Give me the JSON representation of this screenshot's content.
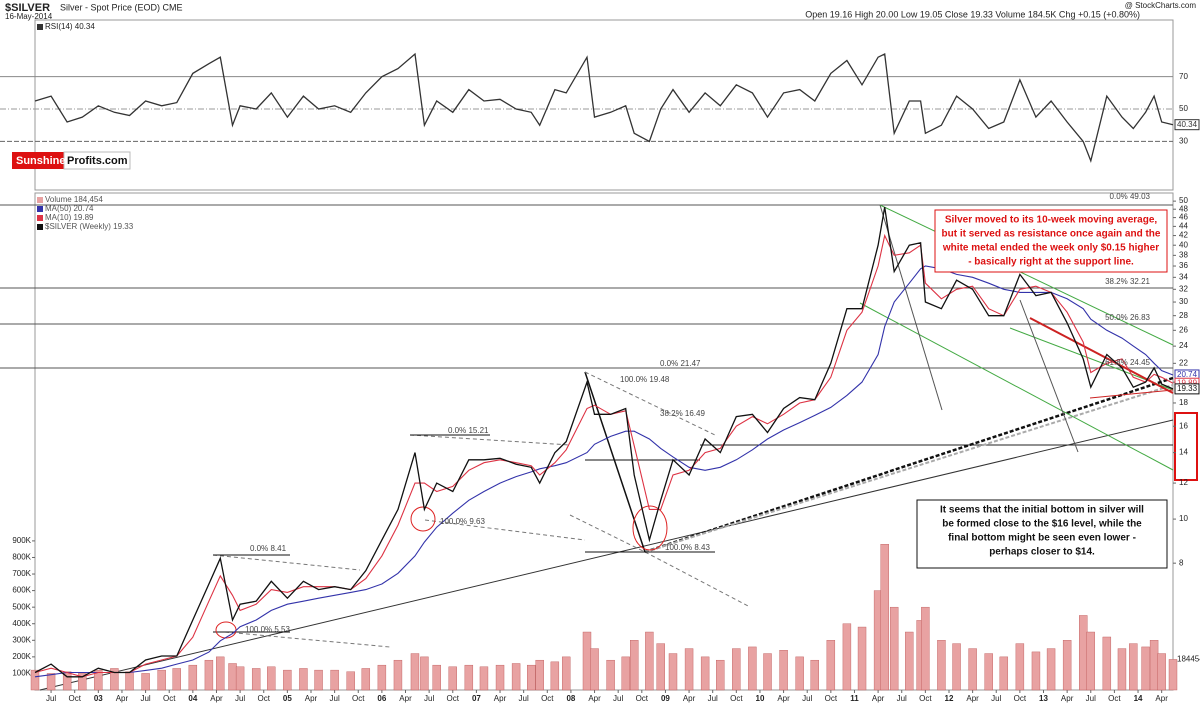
{
  "logo": {
    "part1": "Sunshine",
    "part2": "Profits.com"
  },
  "chart_data": [
    {
      "type": "line",
      "xlim": [
        2002.33,
        2014.37
      ],
      "x": [
        2002.33,
        2002.5,
        2002.67,
        2002.83,
        2003.0,
        2003.17,
        2003.33,
        2003.5,
        2003.67,
        2003.83,
        2004.0,
        2004.17,
        2004.29,
        2004.42,
        2004.5,
        2004.67,
        2004.83,
        2005.0,
        2005.17,
        2005.33,
        2005.5,
        2005.67,
        2005.83,
        2006.0,
        2006.17,
        2006.35,
        2006.45,
        2006.58,
        2006.75,
        2006.92,
        2007.08,
        2007.25,
        2007.42,
        2007.58,
        2007.67,
        2007.83,
        2007.95,
        2008.17,
        2008.25,
        2008.42,
        2008.58,
        2008.67,
        2008.83,
        2008.95,
        2009.08,
        2009.25,
        2009.42,
        2009.58,
        2009.75,
        2009.92,
        2010.08,
        2010.25,
        2010.42,
        2010.58,
        2010.75,
        2010.92,
        2011.08,
        2011.25,
        2011.32,
        2011.42,
        2011.58,
        2011.7,
        2011.75,
        2011.92,
        2012.08,
        2012.25,
        2012.42,
        2012.58,
        2012.75,
        2012.92,
        2013.08,
        2013.25,
        2013.42,
        2013.5,
        2013.67,
        2013.83,
        2013.95,
        2014.08,
        2014.17,
        2014.25,
        2014.37
      ],
      "ylim": [
        0,
        105
      ],
      "yticks": [
        30,
        50,
        70
      ],
      "series": [
        {
          "name": "RSI(14) 40.34",
          "color": "#333333",
          "values": [
            55,
            58,
            42,
            45,
            52,
            48,
            46,
            55,
            52,
            54,
            72,
            78,
            82,
            40,
            52,
            50,
            60,
            45,
            58,
            50,
            52,
            48,
            60,
            70,
            75,
            84,
            40,
            55,
            48,
            62,
            55,
            56,
            50,
            48,
            40,
            62,
            60,
            82,
            45,
            48,
            52,
            35,
            30,
            50,
            62,
            48,
            60,
            52,
            65,
            60,
            45,
            60,
            62,
            55,
            72,
            80,
            65,
            82,
            84,
            35,
            55,
            55,
            35,
            40,
            58,
            50,
            38,
            42,
            68,
            45,
            55,
            42,
            30,
            18,
            58,
            45,
            38,
            48,
            58,
            42,
            40.34
          ]
        }
      ]
    },
    {
      "type": "line",
      "title": "$SILVER",
      "subtitle": "Silver - Spot Price (EOD) CME",
      "date": "16-May-2014",
      "quote": "Open 19.16 High 20.00 Low 19.05 Close 19.33 Volume 184.5K Chg +0.15 (+0.80%)",
      "source": "@ StockCharts.com",
      "log_scale": true,
      "xlim": [
        2002.33,
        2014.37
      ],
      "xticks": [
        {
          "value": 2002.5,
          "label": "Jul"
        },
        {
          "value": 2002.75,
          "label": "Oct"
        },
        {
          "value": 2003,
          "label": "03"
        },
        {
          "value": 2003.25,
          "label": "Apr"
        },
        {
          "value": 2003.5,
          "label": "Jul"
        },
        {
          "value": 2003.75,
          "label": "Oct"
        },
        {
          "value": 2004,
          "label": "04"
        },
        {
          "value": 2004.25,
          "label": "Apr"
        },
        {
          "value": 2004.5,
          "label": "Jul"
        },
        {
          "value": 2004.75,
          "label": "Oct"
        },
        {
          "value": 2005,
          "label": "05"
        },
        {
          "value": 2005.25,
          "label": "Apr"
        },
        {
          "value": 2005.5,
          "label": "Jul"
        },
        {
          "value": 2005.75,
          "label": "Oct"
        },
        {
          "value": 2006,
          "label": "06"
        },
        {
          "value": 2006.25,
          "label": "Apr"
        },
        {
          "value": 2006.5,
          "label": "Jul"
        },
        {
          "value": 2006.75,
          "label": "Oct"
        },
        {
          "value": 2007,
          "label": "07"
        },
        {
          "value": 2007.25,
          "label": "Apr"
        },
        {
          "value": 2007.5,
          "label": "Jul"
        },
        {
          "value": 2007.75,
          "label": "Oct"
        },
        {
          "value": 2008,
          "label": "08"
        },
        {
          "value": 2008.25,
          "label": "Apr"
        },
        {
          "value": 2008.5,
          "label": "Jul"
        },
        {
          "value": 2008.75,
          "label": "Oct"
        },
        {
          "value": 2009,
          "label": "09"
        },
        {
          "value": 2009.25,
          "label": "Apr"
        },
        {
          "value": 2009.5,
          "label": "Jul"
        },
        {
          "value": 2009.75,
          "label": "Oct"
        },
        {
          "value": 2010,
          "label": "10"
        },
        {
          "value": 2010.25,
          "label": "Apr"
        },
        {
          "value": 2010.5,
          "label": "Jul"
        },
        {
          "value": 2010.75,
          "label": "Oct"
        },
        {
          "value": 2011,
          "label": "11"
        },
        {
          "value": 2011.25,
          "label": "Apr"
        },
        {
          "value": 2011.5,
          "label": "Jul"
        },
        {
          "value": 2011.75,
          "label": "Oct"
        },
        {
          "value": 2012,
          "label": "12"
        },
        {
          "value": 2012.25,
          "label": "Apr"
        },
        {
          "value": 2012.5,
          "label": "Jul"
        },
        {
          "value": 2012.75,
          "label": "Oct"
        },
        {
          "value": 2013,
          "label": "13"
        },
        {
          "value": 2013.25,
          "label": "Apr"
        },
        {
          "value": 2013.5,
          "label": "Jul"
        },
        {
          "value": 2013.75,
          "label": "Oct"
        },
        {
          "value": 2014,
          "label": "14"
        },
        {
          "value": 2014.25,
          "label": "Apr"
        }
      ],
      "ylim": [
        4.21,
        52.1
      ],
      "yticks": [
        8,
        10,
        12,
        14,
        16,
        18,
        20,
        22,
        24,
        26,
        28,
        30,
        32,
        34,
        36,
        38,
        40,
        42,
        44,
        46,
        48,
        50
      ],
      "y2lim": [
        0,
        3000000
      ],
      "y2ticks": [
        {
          "value": 100000,
          "label": "100K"
        },
        {
          "value": 200000,
          "label": "200K"
        },
        {
          "value": 300000,
          "label": "300K"
        },
        {
          "value": 400000,
          "label": "400K"
        },
        {
          "value": 500000,
          "label": "500K"
        },
        {
          "value": 600000,
          "label": "600K"
        },
        {
          "value": 700000,
          "label": "700K"
        },
        {
          "value": 800000,
          "label": "800K"
        },
        {
          "value": 900000,
          "label": "900K"
        }
      ],
      "x": [
        2002.33,
        2002.5,
        2002.67,
        2002.83,
        2003.0,
        2003.17,
        2003.33,
        2003.5,
        2003.67,
        2003.83,
        2004.0,
        2004.17,
        2004.29,
        2004.42,
        2004.5,
        2004.67,
        2004.83,
        2005.0,
        2005.17,
        2005.33,
        2005.5,
        2005.67,
        2005.83,
        2006.0,
        2006.17,
        2006.35,
        2006.45,
        2006.58,
        2006.75,
        2006.92,
        2007.08,
        2007.25,
        2007.42,
        2007.58,
        2007.67,
        2007.83,
        2007.95,
        2008.17,
        2008.25,
        2008.42,
        2008.58,
        2008.67,
        2008.83,
        2008.95,
        2009.08,
        2009.25,
        2009.42,
        2009.58,
        2009.75,
        2009.92,
        2010.08,
        2010.25,
        2010.42,
        2010.58,
        2010.75,
        2010.92,
        2011.08,
        2011.25,
        2011.32,
        2011.42,
        2011.58,
        2011.7,
        2011.75,
        2011.92,
        2012.08,
        2012.25,
        2012.42,
        2012.58,
        2012.75,
        2012.92,
        2013.08,
        2013.25,
        2013.42,
        2013.5,
        2013.67,
        2013.83,
        2013.95,
        2014.08,
        2014.17,
        2014.25,
        2014.37
      ],
      "series": [
        {
          "name": "Volume 184,454",
          "color": "#e8a2a2",
          "axis": "y2",
          "type": "bar",
          "values": [
            120000,
            100000,
            110000,
            100000,
            120000,
            130000,
            110000,
            100000,
            120000,
            130000,
            150000,
            180000,
            200000,
            160000,
            140000,
            130000,
            140000,
            120000,
            130000,
            120000,
            120000,
            110000,
            130000,
            150000,
            180000,
            220000,
            200000,
            150000,
            140000,
            150000,
            140000,
            150000,
            160000,
            150000,
            180000,
            170000,
            200000,
            350000,
            250000,
            180000,
            200000,
            300000,
            350000,
            280000,
            220000,
            250000,
            200000,
            180000,
            250000,
            260000,
            220000,
            240000,
            200000,
            180000,
            300000,
            400000,
            380000,
            600000,
            880000,
            500000,
            350000,
            420000,
            500000,
            300000,
            280000,
            250000,
            220000,
            200000,
            280000,
            230000,
            250000,
            300000,
            450000,
            350000,
            320000,
            250000,
            280000,
            260000,
            300000,
            220000,
            184454
          ]
        },
        {
          "name": "MA(50) 20.74",
          "color": "#3333aa",
          "values": [
            4.5,
            4.55,
            4.6,
            4.6,
            4.6,
            4.6,
            4.6,
            4.65,
            4.7,
            4.8,
            4.9,
            5.1,
            5.4,
            5.6,
            5.8,
            6.0,
            6.3,
            6.5,
            6.6,
            6.7,
            6.8,
            6.9,
            7.0,
            7.2,
            7.6,
            8.3,
            8.9,
            9.6,
            10.3,
            11.0,
            11.5,
            12.0,
            12.4,
            12.7,
            12.9,
            13.1,
            13.3,
            14.0,
            14.6,
            15.2,
            15.6,
            15.6,
            15.0,
            14.3,
            13.7,
            13.0,
            12.8,
            13.0,
            13.5,
            14.2,
            15.0,
            15.7,
            16.3,
            16.9,
            17.6,
            18.7,
            20.0,
            23.0,
            26.5,
            30.0,
            33.0,
            35.5,
            36.0,
            35.5,
            34.5,
            34.0,
            33.0,
            32.0,
            31.5,
            31.5,
            31.5,
            30.5,
            29.0,
            27.5,
            26.0,
            25.0,
            24.0,
            23.0,
            22.0,
            21.2,
            20.74
          ]
        },
        {
          "name": "MA(10) 19.89",
          "color": "#dd3344",
          "values": [
            4.6,
            4.7,
            4.6,
            4.5,
            4.6,
            4.6,
            4.6,
            4.8,
            4.9,
            5.0,
            5.5,
            6.6,
            7.5,
            6.8,
            6.3,
            6.5,
            7.0,
            6.9,
            7.1,
            7.1,
            7.1,
            7.0,
            7.4,
            8.3,
            9.7,
            12.0,
            12.0,
            11.5,
            11.8,
            12.8,
            13.3,
            13.5,
            13.3,
            13.1,
            12.5,
            13.3,
            14.2,
            17.5,
            17.8,
            17.0,
            17.3,
            14.5,
            10.5,
            10.5,
            12.5,
            12.8,
            14.0,
            14.3,
            16.0,
            16.8,
            16.2,
            17.0,
            18.0,
            18.3,
            20.5,
            26.0,
            28.5,
            36.0,
            42.0,
            38.0,
            38.5,
            40.0,
            33.0,
            30.5,
            32.0,
            32.5,
            29.0,
            28.0,
            32.0,
            32.5,
            31.5,
            28.5,
            24.5,
            21.0,
            22.0,
            22.5,
            20.5,
            20.0,
            20.8,
            20.5,
            19.89
          ]
        },
        {
          "name": "$SILVER (Weekly) 19.33",
          "color": "#111111",
          "values": [
            4.6,
            4.8,
            4.5,
            4.5,
            4.7,
            4.6,
            4.6,
            4.9,
            5.0,
            5.0,
            6.0,
            7.2,
            8.2,
            6.0,
            6.5,
            6.6,
            7.3,
            6.7,
            7.3,
            7.0,
            7.1,
            7.0,
            7.7,
            9.0,
            10.5,
            14.0,
            10.5,
            12.0,
            11.5,
            13.5,
            13.5,
            13.6,
            13.2,
            13.0,
            12.0,
            14.0,
            14.8,
            20.0,
            17.0,
            17.0,
            17.5,
            12.5,
            9.0,
            11.0,
            13.5,
            12.5,
            15.0,
            14.0,
            16.8,
            17.0,
            15.5,
            17.5,
            18.5,
            18.3,
            22.0,
            29.0,
            29.0,
            40.0,
            48.5,
            35.0,
            40.0,
            40.5,
            30.0,
            29.0,
            33.5,
            32.0,
            28.0,
            28.0,
            34.5,
            31.0,
            31.5,
            27.0,
            22.5,
            19.5,
            23.0,
            21.5,
            19.5,
            20.0,
            21.5,
            19.8,
            19.33
          ]
        }
      ],
      "fib_labels": [
        "0.0% 49.03",
        "38.2% 32.21",
        "50.0% 26.83",
        "61.8% 24.45",
        "0.0% 21.47",
        "100.0% 19.48",
        "38.2% 16.49",
        "0.0% 15.21",
        "100.0% 9.63",
        "0.0% 8.41",
        "100.0% 5.53",
        "100.0% 8.43"
      ],
      "annotations": [
        {
          "color": "#dd1111",
          "text": [
            "Silver moved to its 10-week moving average,",
            "but it served as resistance once again and the",
            "white metal ended the week only $0.15 higher",
            "- basically right at the support line."
          ]
        },
        {
          "color": "#111111",
          "text": [
            "It seems that the initial bottom in silver will",
            "be formed close to the $16 level, while the",
            "final bottom might be seen even lower -",
            "perhaps closer to $14."
          ]
        }
      ]
    }
  ]
}
